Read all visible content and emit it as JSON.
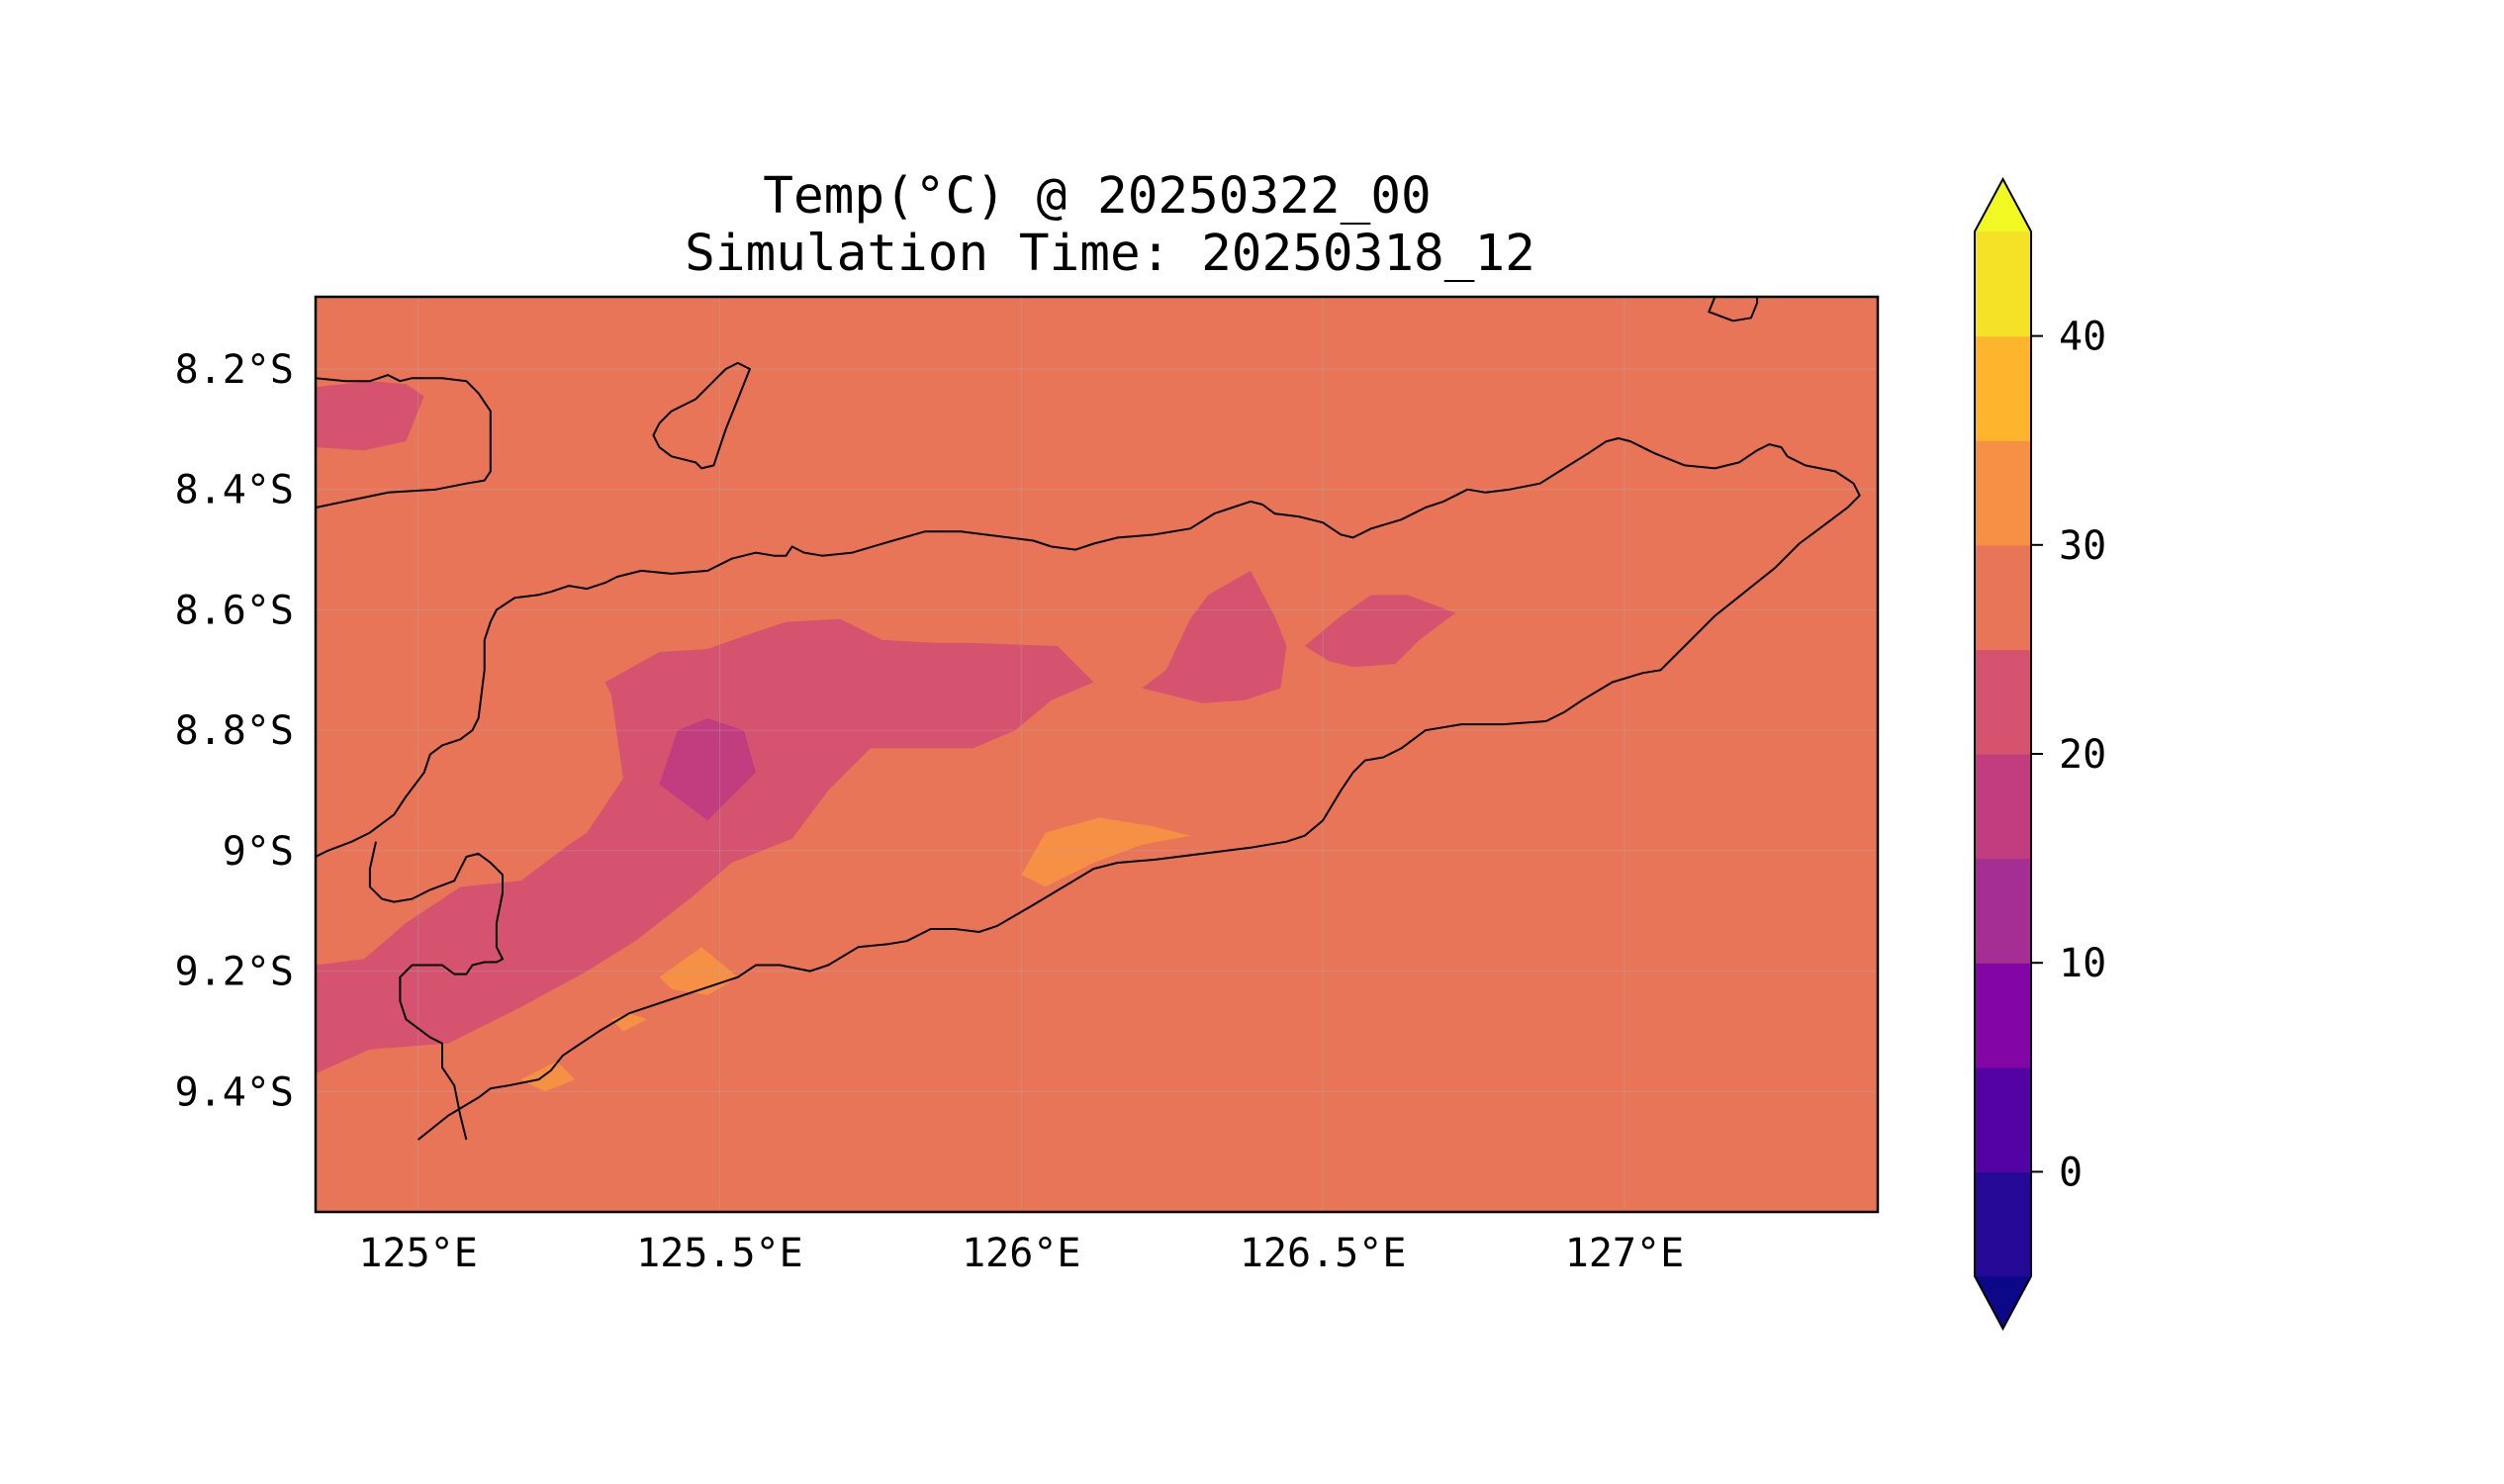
{
  "figure": {
    "title_line1": "Temp(°C) @ 20250322_00",
    "title_line2": "Simulation Time: 20250318_12"
  },
  "map": {
    "lon_range": [
      124.83,
      127.42
    ],
    "lat_range": [
      -9.6,
      -8.08
    ],
    "x_ticks": [
      {
        "value": 125.0,
        "label": "125°E"
      },
      {
        "value": 125.5,
        "label": "125.5°E"
      },
      {
        "value": 126.0,
        "label": "126°E"
      },
      {
        "value": 126.5,
        "label": "126.5°E"
      },
      {
        "value": 127.0,
        "label": "127°E"
      }
    ],
    "y_ticks": [
      {
        "value": -8.2,
        "label": "8.2°S"
      },
      {
        "value": -8.4,
        "label": "8.4°S"
      },
      {
        "value": -8.6,
        "label": "8.6°S"
      },
      {
        "value": -8.8,
        "label": "8.8°S"
      },
      {
        "value": -9.0,
        "label": "9°S"
      },
      {
        "value": -9.2,
        "label": "9.2°S"
      },
      {
        "value": -9.4,
        "label": "9.4°S"
      }
    ],
    "background_color": "#e97558",
    "regions": [
      {
        "band": "20-25",
        "color": "#d5536f",
        "points": [
          [
            124.83,
            -8.23
          ],
          [
            124.92,
            -8.22
          ],
          [
            124.98,
            -8.225
          ],
          [
            125.01,
            -8.245
          ],
          [
            124.98,
            -8.32
          ],
          [
            124.91,
            -8.335
          ],
          [
            124.83,
            -8.33
          ]
        ]
      },
      {
        "band": "20-25",
        "color": "#d5536f",
        "points": [
          [
            125.31,
            -8.72
          ],
          [
            125.4,
            -8.67
          ],
          [
            125.48,
            -8.665
          ],
          [
            125.55,
            -8.64
          ],
          [
            125.61,
            -8.62
          ],
          [
            125.7,
            -8.615
          ],
          [
            125.77,
            -8.65
          ],
          [
            125.86,
            -8.655
          ],
          [
            125.92,
            -8.655
          ],
          [
            126.06,
            -8.66
          ],
          [
            126.12,
            -8.72
          ],
          [
            126.05,
            -8.75
          ],
          [
            125.99,
            -8.8
          ],
          [
            125.92,
            -8.83
          ],
          [
            125.75,
            -8.83
          ],
          [
            125.73,
            -8.85
          ],
          [
            125.68,
            -8.9
          ],
          [
            125.62,
            -8.98
          ],
          [
            125.52,
            -9.02
          ],
          [
            125.45,
            -9.08
          ],
          [
            125.36,
            -9.15
          ],
          [
            125.28,
            -9.2
          ],
          [
            125.17,
            -9.26
          ],
          [
            125.05,
            -9.32
          ],
          [
            124.92,
            -9.33
          ],
          [
            124.83,
            -9.37
          ],
          [
            124.83,
            -9.19
          ],
          [
            124.91,
            -9.18
          ],
          [
            124.98,
            -9.12
          ],
          [
            125.07,
            -9.06
          ],
          [
            125.17,
            -9.05
          ],
          [
            125.25,
            -8.99
          ],
          [
            125.28,
            -8.97
          ],
          [
            125.34,
            -8.88
          ],
          [
            125.32,
            -8.74
          ]
        ]
      },
      {
        "band": "15-20",
        "color": "#c13d80",
        "points": [
          [
            125.43,
            -8.8
          ],
          [
            125.48,
            -8.78
          ],
          [
            125.54,
            -8.8
          ],
          [
            125.56,
            -8.87
          ],
          [
            125.48,
            -8.95
          ],
          [
            125.4,
            -8.89
          ]
        ]
      },
      {
        "band": "20-25",
        "color": "#d5536f",
        "points": [
          [
            126.2,
            -8.73
          ],
          [
            126.24,
            -8.7
          ],
          [
            126.28,
            -8.615
          ],
          [
            126.31,
            -8.575
          ],
          [
            126.38,
            -8.535
          ],
          [
            126.42,
            -8.61
          ],
          [
            126.44,
            -8.66
          ],
          [
            126.43,
            -8.73
          ],
          [
            126.37,
            -8.75
          ],
          [
            126.3,
            -8.755
          ],
          [
            126.24,
            -8.74
          ]
        ]
      },
      {
        "band": "20-25",
        "color": "#d5536f",
        "points": [
          [
            126.47,
            -8.66
          ],
          [
            126.53,
            -8.61
          ],
          [
            126.58,
            -8.575
          ],
          [
            126.64,
            -8.575
          ],
          [
            126.72,
            -8.605
          ],
          [
            126.66,
            -8.65
          ],
          [
            126.62,
            -8.69
          ],
          [
            126.55,
            -8.695
          ],
          [
            126.51,
            -8.685
          ]
        ]
      },
      {
        "band": "30-35",
        "color": "#f69044",
        "points": [
          [
            126.04,
            -8.97
          ],
          [
            126.13,
            -8.945
          ],
          [
            126.22,
            -8.96
          ],
          [
            126.28,
            -8.975
          ],
          [
            126.2,
            -8.99
          ],
          [
            126.12,
            -9.02
          ],
          [
            126.04,
            -9.06
          ],
          [
            126.0,
            -9.04
          ]
        ]
      },
      {
        "band": "30-35",
        "color": "#f69044",
        "points": [
          [
            125.4,
            -9.21
          ],
          [
            125.47,
            -9.16
          ],
          [
            125.53,
            -9.21
          ],
          [
            125.48,
            -9.24
          ],
          [
            125.42,
            -9.23
          ]
        ]
      },
      {
        "band": "30-35",
        "color": "#f69044",
        "points": [
          [
            125.32,
            -9.28
          ],
          [
            125.35,
            -9.27
          ],
          [
            125.38,
            -9.28
          ],
          [
            125.34,
            -9.3
          ]
        ]
      },
      {
        "band": "30-35",
        "color": "#f69044",
        "points": [
          [
            125.17,
            -9.38
          ],
          [
            125.23,
            -9.35
          ],
          [
            125.26,
            -9.38
          ],
          [
            125.21,
            -9.4
          ]
        ]
      }
    ],
    "coastlines": [
      [
        [
          124.83,
          -8.43
        ],
        [
          124.95,
          -8.405
        ],
        [
          125.03,
          -8.4
        ],
        [
          125.08,
          -8.39
        ],
        [
          125.11,
          -8.385
        ],
        [
          125.12,
          -8.37
        ],
        [
          125.12,
          -8.33
        ],
        [
          125.12,
          -8.27
        ],
        [
          125.1,
          -8.24
        ],
        [
          125.08,
          -8.22
        ],
        [
          125.04,
          -8.215
        ],
        [
          124.99,
          -8.215
        ],
        [
          124.97,
          -8.22
        ],
        [
          124.95,
          -8.21
        ],
        [
          124.92,
          -8.22
        ],
        [
          124.88,
          -8.22
        ],
        [
          124.83,
          -8.215
        ]
      ],
      [
        [
          125.4,
          -8.29
        ],
        [
          125.42,
          -8.27
        ],
        [
          125.46,
          -8.25
        ],
        [
          125.49,
          -8.22
        ],
        [
          125.51,
          -8.2
        ],
        [
          125.53,
          -8.19
        ],
        [
          125.55,
          -8.2
        ],
        [
          125.53,
          -8.25
        ],
        [
          125.51,
          -8.3
        ],
        [
          125.5,
          -8.33
        ],
        [
          125.49,
          -8.36
        ],
        [
          125.47,
          -8.365
        ],
        [
          125.46,
          -8.355
        ],
        [
          125.42,
          -8.345
        ],
        [
          125.4,
          -8.33
        ],
        [
          125.39,
          -8.31
        ],
        [
          125.4,
          -8.29
        ]
      ],
      [
        [
          127.15,
          -8.08
        ],
        [
          127.14,
          -8.105
        ],
        [
          127.18,
          -8.12
        ],
        [
          127.21,
          -8.115
        ],
        [
          127.22,
          -8.09
        ],
        [
          127.22,
          -8.08
        ]
      ],
      [
        [
          125.0,
          -9.48
        ],
        [
          125.05,
          -9.44
        ],
        [
          125.1,
          -9.41
        ],
        [
          125.12,
          -9.395
        ],
        [
          125.15,
          -9.39
        ],
        [
          125.2,
          -9.38
        ],
        [
          125.22,
          -9.365
        ],
        [
          125.24,
          -9.34
        ],
        [
          125.27,
          -9.32
        ],
        [
          125.3,
          -9.3
        ],
        [
          125.35,
          -9.27
        ],
        [
          125.41,
          -9.25
        ],
        [
          125.47,
          -9.23
        ],
        [
          125.53,
          -9.21
        ],
        [
          125.56,
          -9.19
        ],
        [
          125.6,
          -9.19
        ],
        [
          125.65,
          -9.2
        ],
        [
          125.68,
          -9.19
        ],
        [
          125.73,
          -9.16
        ],
        [
          125.78,
          -9.155
        ],
        [
          125.81,
          -9.15
        ],
        [
          125.85,
          -9.13
        ],
        [
          125.89,
          -9.13
        ],
        [
          125.93,
          -9.135
        ],
        [
          125.96,
          -9.125
        ],
        [
          126.02,
          -9.09
        ],
        [
          126.07,
          -9.06
        ],
        [
          126.12,
          -9.03
        ],
        [
          126.16,
          -9.02
        ],
        [
          126.22,
          -9.015
        ],
        [
          126.3,
          -9.005
        ],
        [
          126.38,
          -8.995
        ],
        [
          126.44,
          -8.985
        ],
        [
          126.47,
          -8.975
        ],
        [
          126.5,
          -8.95
        ],
        [
          126.53,
          -8.9
        ],
        [
          126.55,
          -8.87
        ],
        [
          126.57,
          -8.85
        ],
        [
          126.6,
          -8.845
        ],
        [
          126.63,
          -8.83
        ],
        [
          126.67,
          -8.8
        ],
        [
          126.73,
          -8.79
        ],
        [
          126.8,
          -8.79
        ],
        [
          126.87,
          -8.785
        ],
        [
          126.9,
          -8.77
        ],
        [
          126.93,
          -8.75
        ],
        [
          126.98,
          -8.72
        ],
        [
          127.03,
          -8.705
        ],
        [
          127.06,
          -8.7
        ],
        [
          127.1,
          -8.66
        ],
        [
          127.15,
          -8.61
        ],
        [
          127.2,
          -8.57
        ],
        [
          127.25,
          -8.53
        ],
        [
          127.29,
          -8.49
        ],
        [
          127.33,
          -8.46
        ],
        [
          127.37,
          -8.43
        ],
        [
          127.39,
          -8.41
        ],
        [
          127.38,
          -8.39
        ],
        [
          127.35,
          -8.37
        ],
        [
          127.3,
          -8.36
        ],
        [
          127.27,
          -8.345
        ],
        [
          127.26,
          -8.33
        ],
        [
          127.24,
          -8.325
        ],
        [
          127.22,
          -8.335
        ],
        [
          127.19,
          -8.355
        ],
        [
          127.15,
          -8.365
        ],
        [
          127.1,
          -8.36
        ],
        [
          127.05,
          -8.34
        ],
        [
          127.01,
          -8.32
        ],
        [
          126.99,
          -8.315
        ],
        [
          126.97,
          -8.32
        ],
        [
          126.94,
          -8.34
        ],
        [
          126.9,
          -8.365
        ],
        [
          126.86,
          -8.39
        ],
        [
          126.81,
          -8.4
        ],
        [
          126.77,
          -8.405
        ],
        [
          126.74,
          -8.4
        ],
        [
          126.72,
          -8.41
        ],
        [
          126.7,
          -8.42
        ],
        [
          126.67,
          -8.43
        ],
        [
          126.63,
          -8.45
        ],
        [
          126.58,
          -8.465
        ],
        [
          126.55,
          -8.48
        ],
        [
          126.53,
          -8.475
        ],
        [
          126.5,
          -8.455
        ],
        [
          126.46,
          -8.445
        ],
        [
          126.42,
          -8.44
        ],
        [
          126.4,
          -8.425
        ],
        [
          126.38,
          -8.42
        ],
        [
          126.35,
          -8.43
        ],
        [
          126.32,
          -8.44
        ],
        [
          126.28,
          -8.465
        ],
        [
          126.22,
          -8.475
        ],
        [
          126.16,
          -8.48
        ],
        [
          126.12,
          -8.49
        ],
        [
          126.09,
          -8.5
        ],
        [
          126.05,
          -8.495
        ],
        [
          126.02,
          -8.485
        ],
        [
          125.98,
          -8.48
        ],
        [
          125.9,
          -8.47
        ],
        [
          125.84,
          -8.47
        ],
        [
          125.77,
          -8.49
        ],
        [
          125.72,
          -8.505
        ],
        [
          125.67,
          -8.51
        ],
        [
          125.64,
          -8.505
        ],
        [
          125.62,
          -8.495
        ],
        [
          125.61,
          -8.51
        ],
        [
          125.59,
          -8.51
        ],
        [
          125.56,
          -8.505
        ],
        [
          125.52,
          -8.515
        ],
        [
          125.48,
          -8.535
        ],
        [
          125.42,
          -8.54
        ],
        [
          125.37,
          -8.535
        ],
        [
          125.33,
          -8.545
        ],
        [
          125.31,
          -8.555
        ],
        [
          125.28,
          -8.565
        ],
        [
          125.25,
          -8.56
        ],
        [
          125.22,
          -8.57
        ],
        [
          125.2,
          -8.575
        ],
        [
          125.16,
          -8.58
        ],
        [
          125.13,
          -8.6
        ],
        [
          125.12,
          -8.62
        ],
        [
          125.11,
          -8.65
        ],
        [
          125.11,
          -8.7
        ],
        [
          125.1,
          -8.78
        ],
        [
          125.09,
          -8.8
        ],
        [
          125.07,
          -8.815
        ],
        [
          125.04,
          -8.825
        ],
        [
          125.02,
          -8.84
        ],
        [
          125.01,
          -8.87
        ],
        [
          124.98,
          -8.91
        ],
        [
          124.96,
          -8.94
        ],
        [
          124.92,
          -8.97
        ],
        [
          124.89,
          -8.985
        ],
        [
          124.85,
          -9.0
        ],
        [
          124.83,
          -9.01
        ]
      ],
      [
        [
          124.93,
          -8.985
        ],
        [
          124.92,
          -9.03
        ],
        [
          124.92,
          -9.06
        ],
        [
          124.94,
          -9.08
        ],
        [
          124.96,
          -9.085
        ],
        [
          124.99,
          -9.08
        ],
        [
          125.02,
          -9.065
        ],
        [
          125.06,
          -9.05
        ],
        [
          125.07,
          -9.03
        ],
        [
          125.08,
          -9.01
        ],
        [
          125.1,
          -9.005
        ],
        [
          125.12,
          -9.02
        ],
        [
          125.14,
          -9.04
        ],
        [
          125.14,
          -9.07
        ],
        [
          125.13,
          -9.12
        ],
        [
          125.13,
          -9.16
        ],
        [
          125.14,
          -9.18
        ],
        [
          125.13,
          -9.185
        ],
        [
          125.11,
          -9.185
        ],
        [
          125.09,
          -9.19
        ],
        [
          125.08,
          -9.205
        ],
        [
          125.06,
          -9.205
        ],
        [
          125.04,
          -9.19
        ],
        [
          124.99,
          -9.19
        ],
        [
          124.97,
          -9.21
        ],
        [
          124.97,
          -9.25
        ],
        [
          124.98,
          -9.28
        ],
        [
          125.02,
          -9.31
        ],
        [
          125.04,
          -9.32
        ],
        [
          125.04,
          -9.36
        ],
        [
          125.06,
          -9.39
        ],
        [
          125.07,
          -9.44
        ],
        [
          125.08,
          -9.48
        ]
      ]
    ]
  },
  "colorbar": {
    "levels": [
      -5,
      0,
      5,
      10,
      15,
      20,
      25,
      30,
      35,
      40,
      45
    ],
    "colors": [
      "#250896",
      "#5302a4",
      "#8305a6",
      "#a42e93",
      "#c13d80",
      "#d5536f",
      "#e97558",
      "#f69044",
      "#fdb52e",
      "#f5e125"
    ],
    "under_color": "#0d0887",
    "over_color": "#f0f921",
    "ticks": [
      {
        "value": 0,
        "label": "0"
      },
      {
        "value": 10,
        "label": "10"
      },
      {
        "value": 20,
        "label": "20"
      },
      {
        "value": 30,
        "label": "30"
      },
      {
        "value": 40,
        "label": "40"
      }
    ]
  }
}
